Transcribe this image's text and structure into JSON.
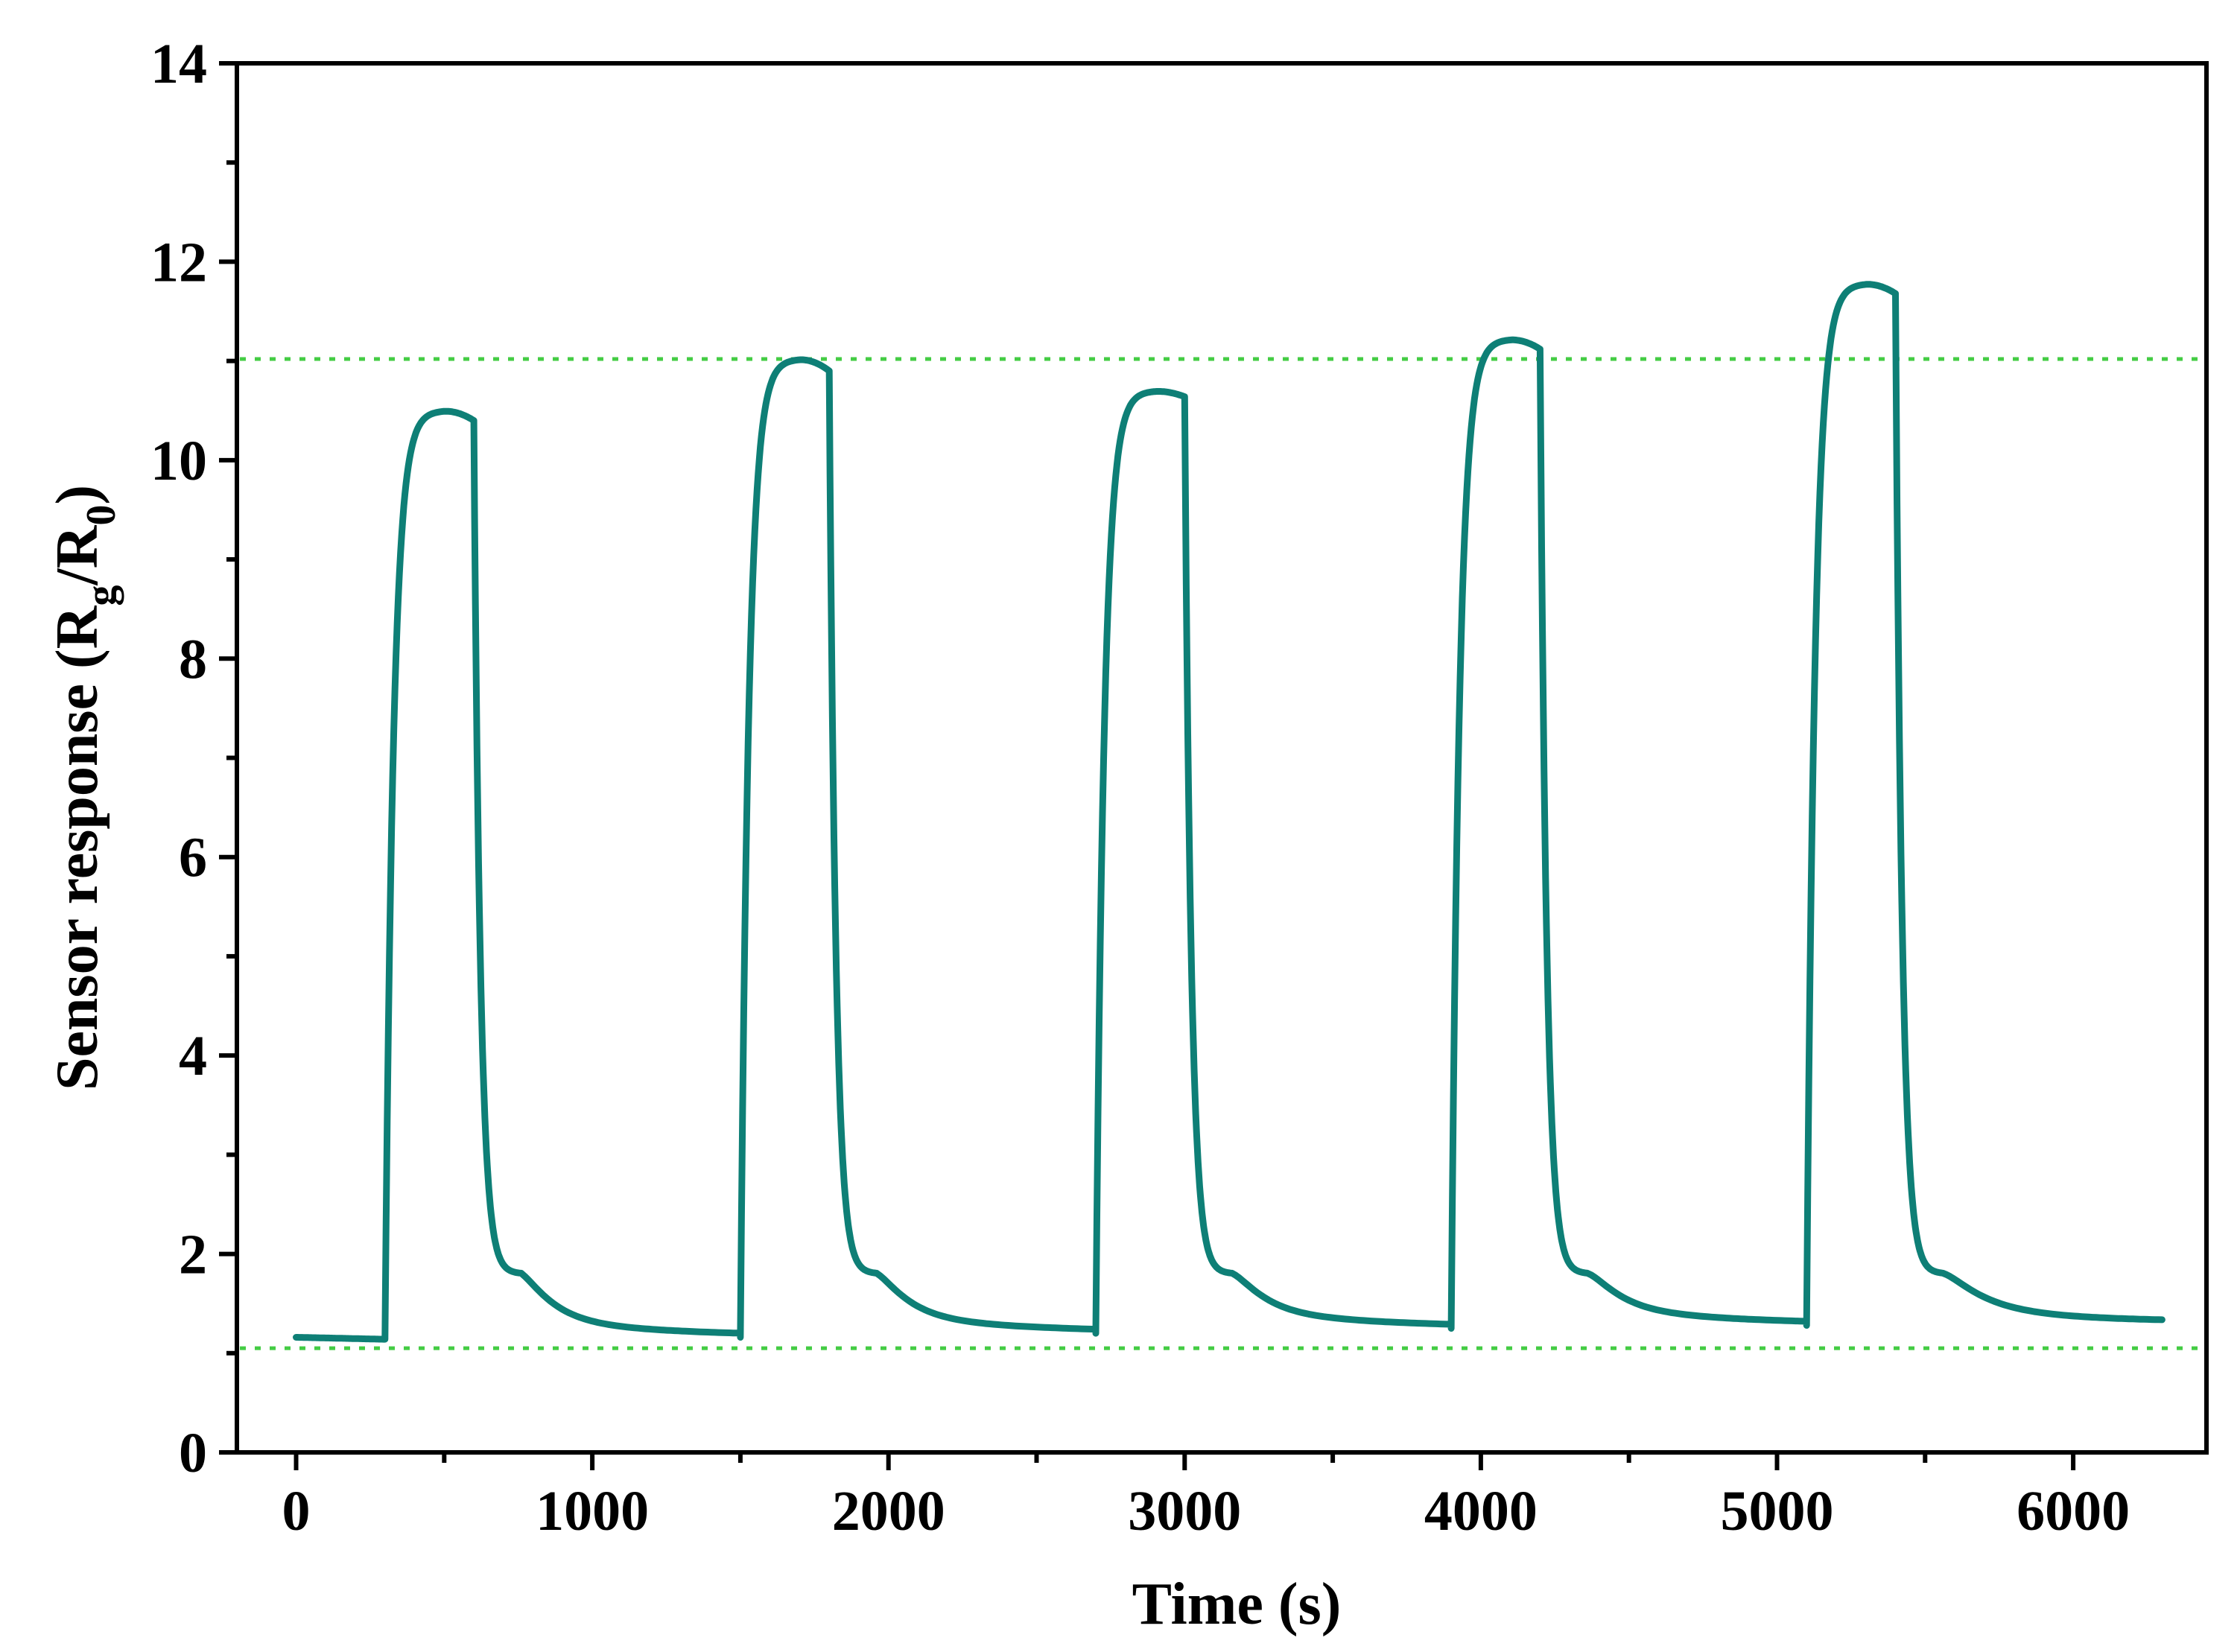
{
  "chart_data": {
    "type": "line",
    "title": "",
    "xlabel": "Time (s)",
    "ylabel": {
      "prefix": "Sensor response (R",
      "sub1": "g",
      "mid": "/R",
      "sub2": "0",
      "suffix": ")"
    },
    "xlim": [
      -200,
      6450
    ],
    "ylim": [
      0,
      14
    ],
    "x_ticks": [
      0,
      1000,
      2000,
      3000,
      4000,
      5000,
      6000
    ],
    "x_tick_labels": [
      "0",
      "1000",
      "2000",
      "3000",
      "4000",
      "5000",
      "6000"
    ],
    "y_ticks": [
      0,
      2,
      4,
      6,
      8,
      10,
      12,
      14
    ],
    "y_tick_labels": [
      "0",
      "2",
      "4",
      "6",
      "8",
      "10",
      "12",
      "14"
    ],
    "grid": false,
    "reference_lines": [
      {
        "axis": "y",
        "value": 11.02,
        "style": "dotted",
        "color": "#44cc44"
      },
      {
        "axis": "y",
        "value": 1.05,
        "style": "dotted",
        "color": "#44cc44"
      }
    ],
    "series": [
      {
        "name": "Sensor response",
        "color": "#0e7f76",
        "baseline_start": 1.16,
        "cycles": [
          {
            "on": 300,
            "off": 600,
            "base": 1.14,
            "peak": 10.5,
            "end_on": 10.4,
            "recover_to": 1.16
          },
          {
            "on": 1500,
            "off": 1800,
            "base": 1.16,
            "peak": 11.02,
            "end_on": 10.9,
            "recover_to": 1.2
          },
          {
            "on": 2700,
            "off": 3000,
            "base": 1.2,
            "peak": 10.7,
            "end_on": 10.64,
            "recover_to": 1.25
          },
          {
            "on": 3900,
            "off": 4200,
            "base": 1.25,
            "peak": 11.22,
            "end_on": 11.12,
            "recover_to": 1.28
          },
          {
            "on": 5100,
            "off": 5400,
            "base": 1.28,
            "peak": 11.78,
            "end_on": 11.68,
            "recover_to": 1.3
          }
        ],
        "x_end": 6300,
        "end_value": 1.3
      }
    ]
  }
}
